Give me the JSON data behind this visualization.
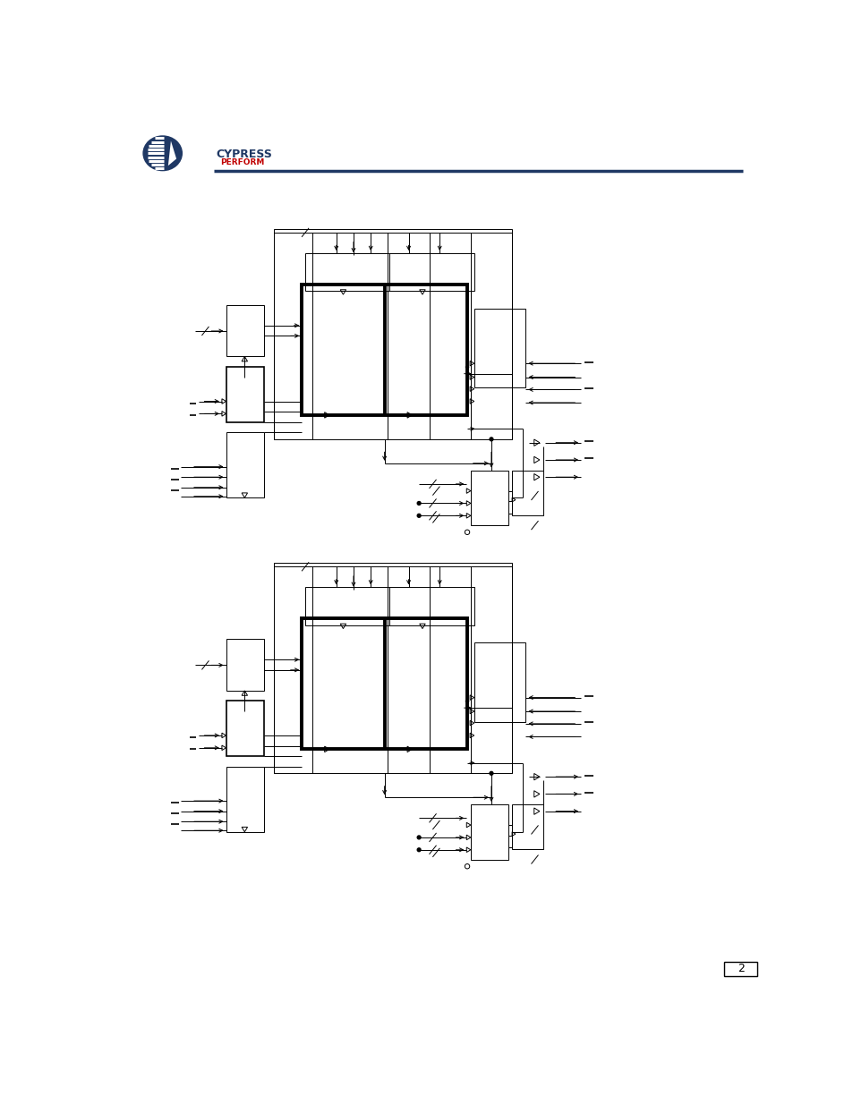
{
  "bg_color": "#ffffff",
  "header_line_color": "#1f3864",
  "cypress_text_color": "#c00000",
  "diagram_color": "#000000",
  "page_num": "2"
}
